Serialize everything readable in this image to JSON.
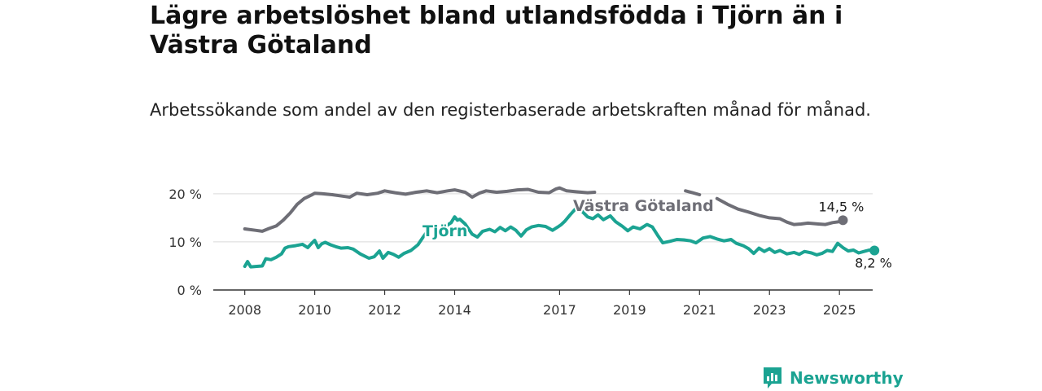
{
  "header": {
    "title": "Lägre arbetslöshet bland utlandsfödda i Tjörn än i Västra Götaland",
    "subtitle": "Arbetssökande som andel av den registerbaserade arbetskraften månad för månad."
  },
  "brand": {
    "name": "Newsworthy",
    "icon": "chart-logo-icon",
    "color": "#1ba392"
  },
  "chart_data": {
    "type": "line",
    "x_ticks": [
      2008,
      2010,
      2012,
      2014,
      2017,
      2019,
      2021,
      2023,
      2025
    ],
    "y_ticks": [
      0,
      10,
      20
    ],
    "y_tick_labels": [
      "0 %",
      "10 %",
      "20 %"
    ],
    "ylim": [
      0,
      22
    ],
    "xlim": [
      2007.1,
      2025.95
    ],
    "grid": true,
    "series": [
      {
        "name": "Västra Götaland",
        "color": "#6e6e76",
        "end_label": "14,5 %",
        "points": [
          [
            2008.0,
            12.7
          ],
          [
            2008.3,
            12.4
          ],
          [
            2008.5,
            12.2
          ],
          [
            2008.7,
            12.8
          ],
          [
            2008.9,
            13.3
          ],
          [
            2009.1,
            14.5
          ],
          [
            2009.3,
            16.0
          ],
          [
            2009.5,
            17.8
          ],
          [
            2009.7,
            19.0
          ],
          [
            2009.9,
            19.7
          ],
          [
            2010.0,
            20.1
          ],
          [
            2010.2,
            20.0
          ],
          [
            2010.5,
            19.8
          ],
          [
            2010.8,
            19.5
          ],
          [
            2011.0,
            19.3
          ],
          [
            2011.2,
            20.1
          ],
          [
            2011.5,
            19.8
          ],
          [
            2011.8,
            20.1
          ],
          [
            2012.0,
            20.6
          ],
          [
            2012.3,
            20.2
          ],
          [
            2012.6,
            19.9
          ],
          [
            2012.9,
            20.3
          ],
          [
            2013.2,
            20.6
          ],
          [
            2013.5,
            20.2
          ],
          [
            2013.8,
            20.6
          ],
          [
            2014.0,
            20.8
          ],
          [
            2014.3,
            20.3
          ],
          [
            2014.5,
            19.3
          ],
          [
            2014.7,
            20.1
          ],
          [
            2014.9,
            20.6
          ],
          [
            2015.2,
            20.3
          ],
          [
            2015.5,
            20.5
          ],
          [
            2015.8,
            20.8
          ],
          [
            2016.1,
            20.9
          ],
          [
            2016.4,
            20.3
          ],
          [
            2016.7,
            20.2
          ],
          [
            2016.9,
            21.0
          ],
          [
            2017.0,
            21.2
          ],
          [
            2017.2,
            20.6
          ],
          [
            2017.5,
            20.4
          ],
          [
            2017.8,
            20.2
          ],
          [
            2018.0,
            20.3
          ]
        ],
        "points_b": [
          [
            2020.6,
            20.6
          ],
          [
            2020.8,
            20.2
          ],
          [
            2021.0,
            19.8
          ]
        ],
        "points_c": [
          [
            2021.5,
            19.0
          ],
          [
            2021.8,
            17.8
          ],
          [
            2022.1,
            16.8
          ],
          [
            2022.4,
            16.2
          ],
          [
            2022.7,
            15.5
          ],
          [
            2023.0,
            15.0
          ],
          [
            2023.3,
            14.8
          ],
          [
            2023.5,
            14.1
          ],
          [
            2023.7,
            13.6
          ],
          [
            2023.9,
            13.7
          ],
          [
            2024.1,
            13.9
          ],
          [
            2024.4,
            13.7
          ],
          [
            2024.6,
            13.6
          ],
          [
            2024.8,
            14.0
          ],
          [
            2025.0,
            14.2
          ],
          [
            2025.1,
            14.5
          ]
        ]
      },
      {
        "name": "Tjörn",
        "color": "#1ba392",
        "end_label": "8,2 %",
        "points": [
          [
            2008.0,
            4.9
          ],
          [
            2008.08,
            5.9
          ],
          [
            2008.17,
            4.8
          ],
          [
            2008.35,
            4.9
          ],
          [
            2008.5,
            5.0
          ],
          [
            2008.6,
            6.5
          ],
          [
            2008.75,
            6.3
          ],
          [
            2008.9,
            6.8
          ],
          [
            2009.05,
            7.5
          ],
          [
            2009.15,
            8.7
          ],
          [
            2009.25,
            9.0
          ],
          [
            2009.45,
            9.2
          ],
          [
            2009.65,
            9.5
          ],
          [
            2009.8,
            8.8
          ],
          [
            2009.9,
            9.6
          ],
          [
            2010.0,
            10.3
          ],
          [
            2010.1,
            8.8
          ],
          [
            2010.2,
            9.6
          ],
          [
            2010.3,
            9.9
          ],
          [
            2010.45,
            9.4
          ],
          [
            2010.6,
            9.0
          ],
          [
            2010.75,
            8.7
          ],
          [
            2010.95,
            8.8
          ],
          [
            2011.1,
            8.5
          ],
          [
            2011.3,
            7.5
          ],
          [
            2011.55,
            6.6
          ],
          [
            2011.7,
            6.9
          ],
          [
            2011.85,
            8.1
          ],
          [
            2011.95,
            6.6
          ],
          [
            2012.1,
            7.8
          ],
          [
            2012.25,
            7.4
          ],
          [
            2012.4,
            6.8
          ],
          [
            2012.55,
            7.6
          ],
          [
            2012.75,
            8.2
          ],
          [
            2012.95,
            9.4
          ],
          [
            2013.1,
            11.0
          ],
          [
            2013.2,
            12.0
          ],
          [
            2013.3,
            13.4
          ],
          [
            2013.4,
            13.0
          ],
          [
            2013.55,
            12.3
          ],
          [
            2013.9,
            14.0
          ],
          [
            2014.0,
            15.2
          ],
          [
            2014.08,
            14.5
          ],
          [
            2014.15,
            14.7
          ],
          [
            2014.3,
            13.7
          ],
          [
            2014.5,
            11.6
          ],
          [
            2014.65,
            11.0
          ],
          [
            2014.8,
            12.2
          ],
          [
            2015.0,
            12.6
          ],
          [
            2015.15,
            12.1
          ],
          [
            2015.3,
            13.0
          ],
          [
            2015.45,
            12.3
          ],
          [
            2015.6,
            13.1
          ],
          [
            2015.75,
            12.4
          ],
          [
            2015.9,
            11.2
          ],
          [
            2016.05,
            12.5
          ],
          [
            2016.2,
            13.1
          ],
          [
            2016.4,
            13.4
          ],
          [
            2016.6,
            13.2
          ],
          [
            2016.8,
            12.4
          ],
          [
            2016.95,
            13.1
          ],
          [
            2017.05,
            13.6
          ],
          [
            2017.15,
            14.3
          ],
          [
            2017.3,
            15.6
          ],
          [
            2017.45,
            16.8
          ],
          [
            2017.55,
            17.3
          ],
          [
            2017.65,
            16.3
          ],
          [
            2017.8,
            15.2
          ],
          [
            2017.95,
            14.8
          ],
          [
            2018.1,
            15.6
          ],
          [
            2018.25,
            14.6
          ],
          [
            2018.45,
            15.4
          ],
          [
            2018.6,
            14.2
          ],
          [
            2018.8,
            13.2
          ],
          [
            2018.95,
            12.3
          ],
          [
            2019.1,
            13.1
          ],
          [
            2019.3,
            12.7
          ],
          [
            2019.5,
            13.6
          ],
          [
            2019.65,
            13.1
          ],
          [
            2019.8,
            11.4
          ],
          [
            2019.95,
            9.8
          ],
          [
            2020.15,
            10.1
          ],
          [
            2020.35,
            10.5
          ],
          [
            2020.55,
            10.4
          ],
          [
            2020.75,
            10.2
          ],
          [
            2020.9,
            9.8
          ],
          [
            2021.1,
            10.8
          ],
          [
            2021.3,
            11.1
          ],
          [
            2021.5,
            10.6
          ],
          [
            2021.7,
            10.2
          ],
          [
            2021.9,
            10.5
          ],
          [
            2022.05,
            9.7
          ],
          [
            2022.25,
            9.2
          ],
          [
            2022.4,
            8.6
          ],
          [
            2022.55,
            7.6
          ],
          [
            2022.7,
            8.7
          ],
          [
            2022.85,
            8.0
          ],
          [
            2023.0,
            8.6
          ],
          [
            2023.15,
            7.8
          ],
          [
            2023.3,
            8.2
          ],
          [
            2023.5,
            7.5
          ],
          [
            2023.7,
            7.8
          ],
          [
            2023.85,
            7.4
          ],
          [
            2024.0,
            8.0
          ],
          [
            2024.2,
            7.7
          ],
          [
            2024.35,
            7.3
          ],
          [
            2024.5,
            7.6
          ],
          [
            2024.65,
            8.2
          ],
          [
            2024.8,
            8.0
          ],
          [
            2024.95,
            9.7
          ],
          [
            2025.1,
            8.8
          ],
          [
            2025.25,
            8.1
          ],
          [
            2025.4,
            8.3
          ],
          [
            2025.55,
            7.7
          ],
          [
            2025.7,
            8.0
          ],
          [
            2025.85,
            8.3
          ],
          [
            2026.0,
            8.2
          ]
        ]
      }
    ]
  }
}
